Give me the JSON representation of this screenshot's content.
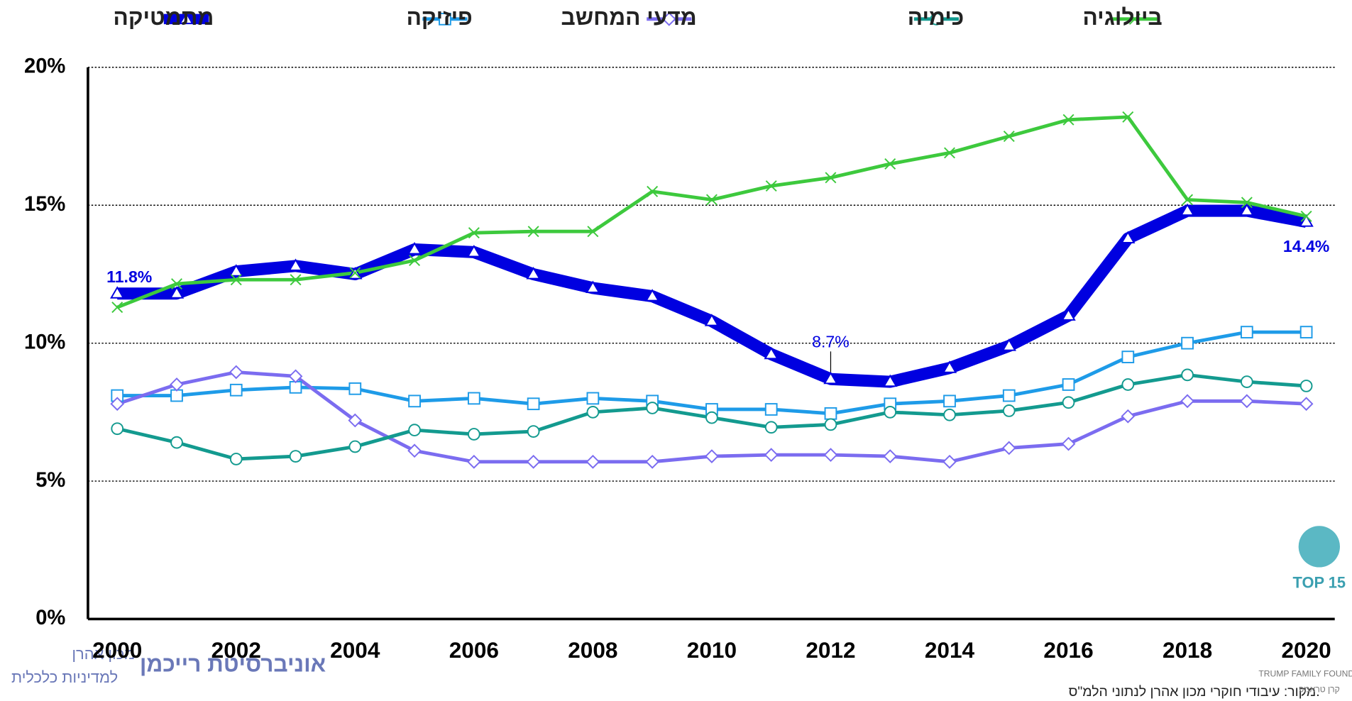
{
  "chart_data": {
    "type": "line",
    "x": [
      2000,
      2001,
      2002,
      2003,
      2004,
      2005,
      2006,
      2007,
      2008,
      2009,
      2010,
      2011,
      2012,
      2013,
      2014,
      2015,
      2016,
      2017,
      2018,
      2019,
      2020
    ],
    "xlim": [
      2000,
      2020
    ],
    "xticks": [
      2000,
      2002,
      2004,
      2006,
      2008,
      2010,
      2012,
      2014,
      2016,
      2018,
      2020
    ],
    "ylim": [
      0,
      20
    ],
    "yticks": [
      {
        "value": 0,
        "label": "0%"
      },
      {
        "value": 5,
        "label": "5%"
      },
      {
        "value": 10,
        "label": "10%"
      },
      {
        "value": 15,
        "label": "15%"
      },
      {
        "value": 20,
        "label": "20%"
      }
    ],
    "grid": true,
    "legend": "top",
    "series": [
      {
        "name": "מתמטיקה",
        "color": "#0000e0",
        "marker": "triangle",
        "values": [
          11.8,
          11.8,
          12.6,
          12.8,
          12.5,
          13.4,
          13.3,
          12.5,
          12.0,
          11.7,
          10.8,
          9.6,
          8.7,
          8.6,
          9.1,
          9.9,
          11.0,
          13.8,
          14.8,
          14.8,
          14.4
        ],
        "value_labels": [
          {
            "index": 0,
            "label": "11.8%"
          },
          {
            "index": 12,
            "label": "8.7%"
          },
          {
            "index": 20,
            "label": "14.4%"
          }
        ]
      },
      {
        "name": "פיזיקה",
        "color": "#1e9be8",
        "marker": "square",
        "values": [
          8.1,
          8.1,
          8.3,
          8.4,
          8.35,
          7.9,
          8.0,
          7.8,
          8.0,
          7.9,
          7.6,
          7.6,
          7.45,
          7.8,
          7.9,
          8.1,
          8.5,
          9.5,
          10.0,
          10.4,
          10.4
        ]
      },
      {
        "name": "מדעי המחשב",
        "color": "#7b6cf0",
        "marker": "diamond",
        "values": [
          7.8,
          8.5,
          8.95,
          8.8,
          7.2,
          6.1,
          5.7,
          5.7,
          5.7,
          5.7,
          5.9,
          5.95,
          5.95,
          5.9,
          5.7,
          6.2,
          6.35,
          7.35,
          7.9,
          7.9,
          7.8
        ]
      },
      {
        "name": "כימיה",
        "color": "#139a8f",
        "marker": "circle",
        "values": [
          6.9,
          6.4,
          5.8,
          5.9,
          6.25,
          6.85,
          6.7,
          6.8,
          7.5,
          7.65,
          7.3,
          6.95,
          7.05,
          7.5,
          7.4,
          7.55,
          7.85,
          8.5,
          8.85,
          8.6,
          8.45
        ]
      },
      {
        "name": "ביולוגיה",
        "color": "#3dc93d",
        "marker": "x",
        "values": [
          11.3,
          12.15,
          12.3,
          12.3,
          12.55,
          13.0,
          14.0,
          14.05,
          14.05,
          15.5,
          15.2,
          15.7,
          16.0,
          16.5,
          16.9,
          17.5,
          18.1,
          18.2,
          15.2,
          15.1,
          14.6
        ]
      }
    ],
    "source": "מקור: עיבודי חוקרי מכון אהרן לנתוני הלמ\"ס.",
    "logos": [
      "מכון אהרן",
      "למדיניות כלכלית",
      "אוניברסיטת רייכמן",
      "TOP 15",
      "TRUMP FAMILY FOUNDATION",
      "קרן טראמפ"
    ]
  }
}
